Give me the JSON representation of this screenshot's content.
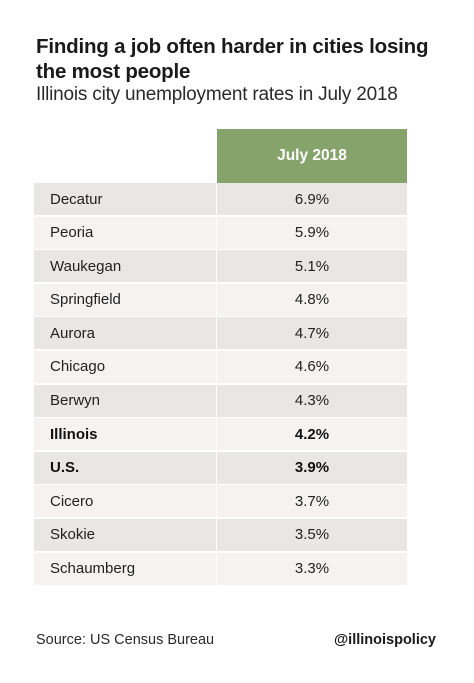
{
  "chart_data": {
    "type": "table",
    "title": "Finding a job often harder in cities losing the most people",
    "subtitle": "Illinois city unemployment rates in July 2018",
    "columns": [
      "July 2018"
    ],
    "rows": [
      {
        "label": "Decatur",
        "value": "6.9%",
        "bold": false
      },
      {
        "label": "Peoria",
        "value": "5.9%",
        "bold": false
      },
      {
        "label": "Waukegan",
        "value": "5.1%",
        "bold": false
      },
      {
        "label": "Springfield",
        "value": "4.8%",
        "bold": false
      },
      {
        "label": "Aurora",
        "value": "4.7%",
        "bold": false
      },
      {
        "label": "Chicago",
        "value": "4.6%",
        "bold": false
      },
      {
        "label": "Berwyn",
        "value": "4.3%",
        "bold": false
      },
      {
        "label": "Illinois",
        "value": "4.2%",
        "bold": true
      },
      {
        "label": "U.S.",
        "value": "3.9%",
        "bold": true
      },
      {
        "label": "Cicero",
        "value": "3.7%",
        "bold": false
      },
      {
        "label": "Skokie",
        "value": "3.5%",
        "bold": false
      },
      {
        "label": "Schaumberg",
        "value": "3.3%",
        "bold": false
      }
    ],
    "header_color": "#86a36b"
  },
  "footer": {
    "source": "Source: US Census Bureau",
    "handle": "@illinoispolicy"
  }
}
